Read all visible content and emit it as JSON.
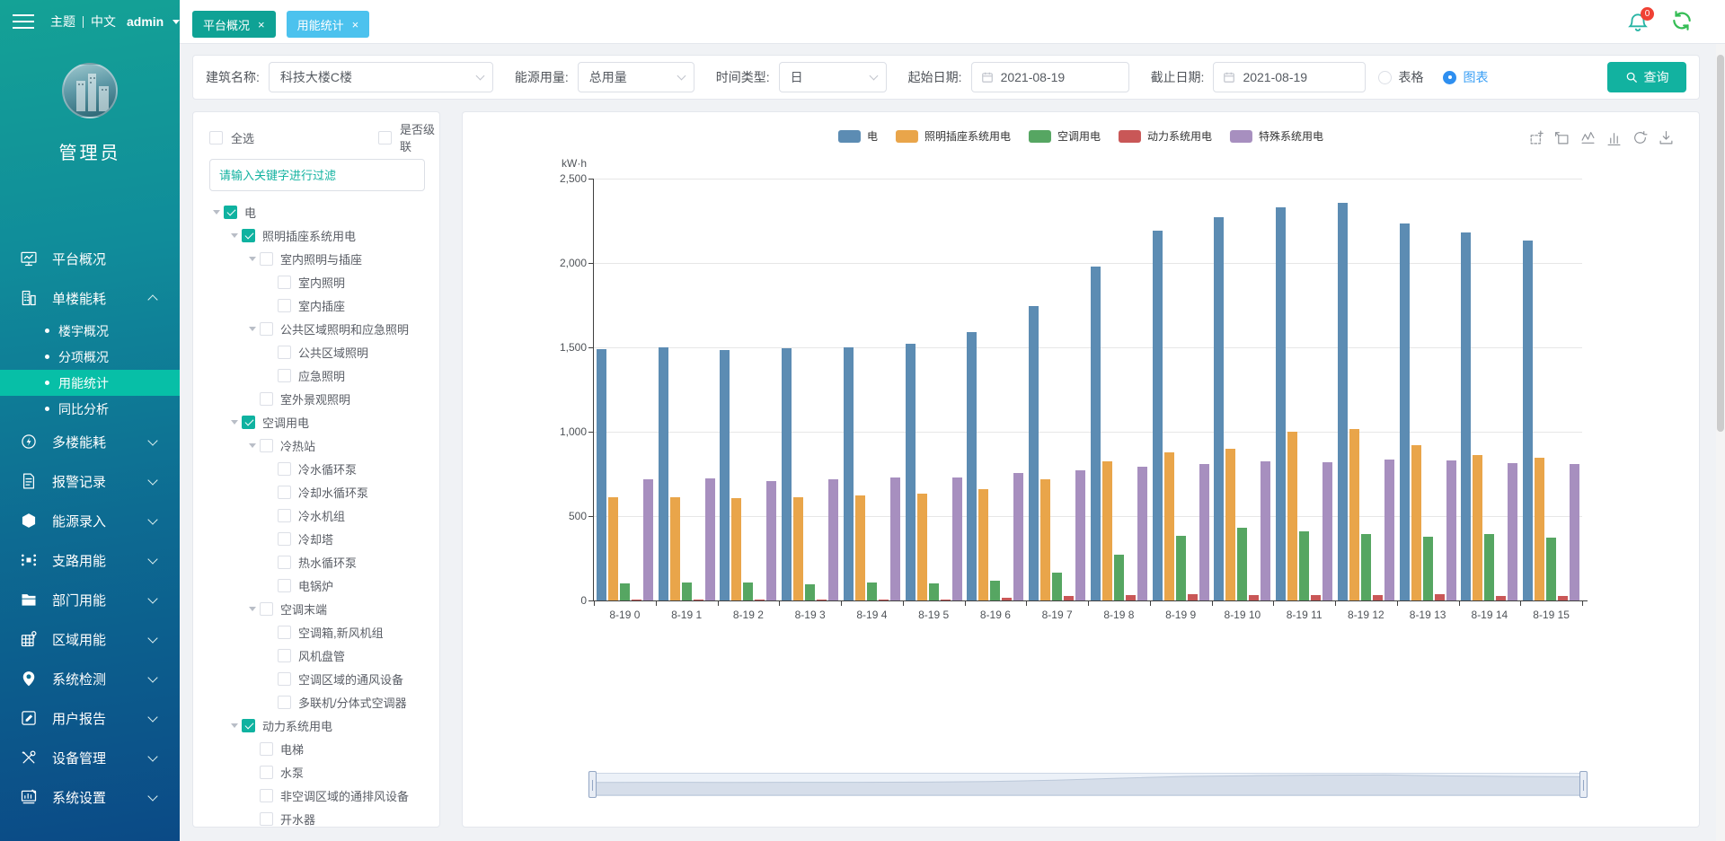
{
  "header": {
    "theme_label": "主题",
    "lang_label": "中文",
    "user": "admin",
    "notification_count": "0",
    "icons": [
      "bell-icon",
      "sync-icon"
    ]
  },
  "tabs": [
    {
      "label": "平台概况",
      "close": "×",
      "active": false,
      "color": "#0fa295"
    },
    {
      "label": "用能统计",
      "close": "×",
      "active": true,
      "color": "#4cc2ee"
    }
  ],
  "sidebar": {
    "role": "管理员",
    "items": [
      {
        "label": "平台概况",
        "icon": "monitor-icon",
        "chevron": false
      },
      {
        "label": "单楼能耗",
        "icon": "building-icon",
        "chevron": true,
        "expanded": true,
        "children": [
          {
            "label": "楼宇概况",
            "active": false
          },
          {
            "label": "分项概况",
            "active": false
          },
          {
            "label": "用能统计",
            "active": true
          },
          {
            "label": "同比分析",
            "active": false
          }
        ]
      },
      {
        "label": "多楼能耗",
        "icon": "bolt-circle-icon",
        "chevron": true
      },
      {
        "label": "报警记录",
        "icon": "alarm-file-icon",
        "chevron": true
      },
      {
        "label": "能源录入",
        "icon": "hexagon-icon",
        "chevron": true
      },
      {
        "label": "支路用能",
        "icon": "branch-network-icon",
        "chevron": true
      },
      {
        "label": "部门用能",
        "icon": "folder-icon",
        "chevron": true
      },
      {
        "label": "区域用能",
        "icon": "region-map-icon",
        "chevron": true
      },
      {
        "label": "系统检测",
        "icon": "location-pin-icon",
        "chevron": true
      },
      {
        "label": "用户报告",
        "icon": "report-edit-icon",
        "chevron": true
      },
      {
        "label": "设备管理",
        "icon": "tools-icon",
        "chevron": true
      },
      {
        "label": "系统设置",
        "icon": "system-settings-icon",
        "chevron": true
      }
    ]
  },
  "filters": {
    "building_label": "建筑名称:",
    "building_value": "科技大楼C楼",
    "energy_label": "能源用量:",
    "energy_value": "总用量",
    "time_type_label": "时间类型:",
    "time_type_value": "日",
    "start_date_label": "起始日期:",
    "start_date_value": "2021-08-19",
    "end_date_label": "截止日期:",
    "end_date_value": "2021-08-19",
    "view_table_label": "表格",
    "view_chart_label": "图表",
    "view_selected": "图表",
    "query_button": "查询"
  },
  "tree_panel": {
    "select_all_label": "全选",
    "cascade_label": "是否级联",
    "filter_placeholder": "请输入关键字进行过滤",
    "nodes": [
      {
        "label": "电",
        "level": 0,
        "checked": true,
        "arrow": true
      },
      {
        "label": "照明插座系统用电",
        "level": 1,
        "checked": true,
        "arrow": true
      },
      {
        "label": "室内照明与插座",
        "level": 2,
        "checked": false,
        "arrow": true
      },
      {
        "label": "室内照明",
        "level": 3,
        "checked": false,
        "arrow": false
      },
      {
        "label": "室内插座",
        "level": 3,
        "checked": false,
        "arrow": false
      },
      {
        "label": "公共区域照明和应急照明",
        "level": 2,
        "checked": false,
        "arrow": true
      },
      {
        "label": "公共区域照明",
        "level": 3,
        "checked": false,
        "arrow": false
      },
      {
        "label": "应急照明",
        "level": 3,
        "checked": false,
        "arrow": false
      },
      {
        "label": "室外景观照明",
        "level": 2,
        "checked": false,
        "arrow": false
      },
      {
        "label": "空调用电",
        "level": 1,
        "checked": true,
        "arrow": true
      },
      {
        "label": "冷热站",
        "level": 2,
        "checked": false,
        "arrow": true
      },
      {
        "label": "冷水循环泵",
        "level": 3,
        "checked": false,
        "arrow": false
      },
      {
        "label": "冷却水循环泵",
        "level": 3,
        "checked": false,
        "arrow": false
      },
      {
        "label": "冷水机组",
        "level": 3,
        "checked": false,
        "arrow": false
      },
      {
        "label": "冷却塔",
        "level": 3,
        "checked": false,
        "arrow": false
      },
      {
        "label": "热水循环泵",
        "level": 3,
        "checked": false,
        "arrow": false
      },
      {
        "label": "电锅炉",
        "level": 3,
        "checked": false,
        "arrow": false
      },
      {
        "label": "空调末端",
        "level": 2,
        "checked": false,
        "arrow": true
      },
      {
        "label": "空调箱,新风机组",
        "level": 3,
        "checked": false,
        "arrow": false
      },
      {
        "label": "风机盘管",
        "level": 3,
        "checked": false,
        "arrow": false
      },
      {
        "label": "空调区域的通风设备",
        "level": 3,
        "checked": false,
        "arrow": false
      },
      {
        "label": "多联机/分体式空调器",
        "level": 3,
        "checked": false,
        "arrow": false
      },
      {
        "label": "动力系统用电",
        "level": 1,
        "checked": true,
        "arrow": true
      },
      {
        "label": "电梯",
        "level": 2,
        "checked": false,
        "arrow": false
      },
      {
        "label": "水泵",
        "level": 2,
        "checked": false,
        "arrow": false
      },
      {
        "label": "非空调区域的通排风设备",
        "level": 2,
        "checked": false,
        "arrow": false
      },
      {
        "label": "开水器",
        "level": 2,
        "checked": false,
        "arrow": false
      }
    ]
  },
  "chart_data": {
    "type": "bar",
    "unit": "kW·h",
    "categories": [
      "8-19 0",
      "8-19 1",
      "8-19 2",
      "8-19 3",
      "8-19 4",
      "8-19 5",
      "8-19 6",
      "8-19 7",
      "8-19 8",
      "8-19 9",
      "8-19 10",
      "8-19 11",
      "8-19 12",
      "8-19 13",
      "8-19 14",
      "8-19 15"
    ],
    "series": [
      {
        "name": "电",
        "color": "#5c8cb3",
        "values": [
          1490,
          1500,
          1485,
          1495,
          1500,
          1520,
          1590,
          1745,
          1980,
          2190,
          2270,
          2330,
          2355,
          2235,
          2180,
          2135
        ]
      },
      {
        "name": "照明插座系统用电",
        "color": "#e9a54a",
        "values": [
          610,
          610,
          605,
          610,
          620,
          635,
          660,
          720,
          825,
          880,
          900,
          1000,
          1015,
          920,
          860,
          845
        ]
      },
      {
        "name": "空调用电",
        "color": "#56a662",
        "values": [
          100,
          105,
          105,
          95,
          105,
          100,
          115,
          165,
          270,
          385,
          430,
          410,
          395,
          380,
          395,
          375
        ]
      },
      {
        "name": "动力系统用电",
        "color": "#c95757",
        "values": [
          5,
          8,
          3,
          8,
          5,
          8,
          15,
          25,
          30,
          35,
          30,
          30,
          30,
          37,
          28,
          25
        ]
      },
      {
        "name": "特殊系统用电",
        "color": "#a78fbf",
        "values": [
          720,
          725,
          710,
          720,
          730,
          730,
          755,
          770,
          790,
          810,
          825,
          820,
          835,
          830,
          815,
          810
        ]
      }
    ],
    "ylim": [
      0,
      2500
    ],
    "yticks": [
      "0",
      "500",
      "1,000",
      "1,500",
      "2,000",
      "2,500"
    ],
    "legend_position": "top-center",
    "grid": true,
    "toolbox_icons": [
      "zoom-select-icon",
      "zoom-restore-icon",
      "line-chart-icon",
      "bar-chart-icon",
      "restore-icon",
      "download-icon"
    ]
  }
}
